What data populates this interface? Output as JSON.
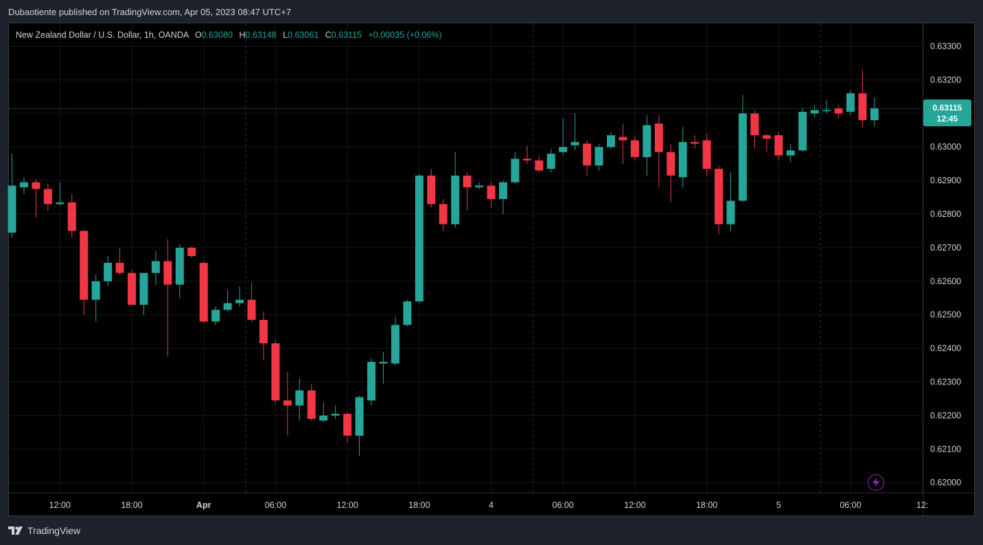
{
  "header": {
    "publisher_line": "Dubaotiente published on TradingView.com, Apr 05, 2023 08:47 UTC+7"
  },
  "legend": {
    "symbol": "New Zealand Dollar / U.S. Dollar, 1h, OANDA",
    "o_key": "O",
    "o_val": "0.63080",
    "h_key": "H",
    "h_val": "0.63148",
    "l_key": "L",
    "l_val": "0.63061",
    "c_key": "C",
    "c_val": "0.63115",
    "change": "+0.00035 (+0.06%)"
  },
  "price_tag": {
    "price": "0.63115",
    "countdown": "12:45"
  },
  "brand": {
    "name": "TradingView"
  },
  "colors": {
    "up": "#26a69a",
    "down": "#f23645",
    "background": "#000000",
    "grid": "#1c1f28",
    "text": "#d1d4dc"
  },
  "icons": {
    "replay": "lightning-bolt-icon",
    "logo": "tradingview-logo-icon"
  },
  "chart_data": {
    "type": "candlestick",
    "ylim": [
      0.6195,
      0.6335
    ],
    "y_ticks": [
      0.633,
      0.632,
      0.631,
      0.63,
      0.629,
      0.628,
      0.627,
      0.626,
      0.625,
      0.624,
      0.623,
      0.622,
      0.621,
      0.62
    ],
    "y_tick_labels": [
      "0.63300",
      "0.63200",
      "0.63100",
      "0.63000",
      "0.62900",
      "0.62800",
      "0.62700",
      "0.62600",
      "0.62500",
      "0.62400",
      "0.62300",
      "0.62200",
      "0.62100",
      "0.62000"
    ],
    "x_ticks": [
      {
        "label": "12:00",
        "bar": 4
      },
      {
        "label": "18:00",
        "bar": 10
      },
      {
        "label": "Apr",
        "bar": 16,
        "bold": true
      },
      {
        "label": "06:00",
        "bar": 22
      },
      {
        "label": "12:00",
        "bar": 28
      },
      {
        "label": "18:00",
        "bar": 34
      },
      {
        "label": "4",
        "bar": 40
      },
      {
        "label": "06:00",
        "bar": 46
      },
      {
        "label": "12:00",
        "bar": 52
      },
      {
        "label": "18:00",
        "bar": 58
      },
      {
        "label": "5",
        "bar": 64
      },
      {
        "label": "06:00",
        "bar": 70
      },
      {
        "label": "12:",
        "bar": 76
      }
    ],
    "session_breaks": [
      20,
      44,
      68
    ],
    "last_price": 0.63115,
    "candles": [
      {
        "o": 0.62745,
        "h": 0.6298,
        "l": 0.6273,
        "c": 0.62885
      },
      {
        "o": 0.6288,
        "h": 0.6291,
        "l": 0.6286,
        "c": 0.62895
      },
      {
        "o": 0.62895,
        "h": 0.62905,
        "l": 0.6279,
        "c": 0.62875
      },
      {
        "o": 0.62875,
        "h": 0.6289,
        "l": 0.6281,
        "c": 0.6283
      },
      {
        "o": 0.6283,
        "h": 0.62895,
        "l": 0.62825,
        "c": 0.62835
      },
      {
        "o": 0.62835,
        "h": 0.6286,
        "l": 0.6273,
        "c": 0.6275
      },
      {
        "o": 0.6275,
        "h": 0.62755,
        "l": 0.625,
        "c": 0.62545
      },
      {
        "o": 0.62545,
        "h": 0.6262,
        "l": 0.6248,
        "c": 0.626
      },
      {
        "o": 0.626,
        "h": 0.62675,
        "l": 0.62585,
        "c": 0.62655
      },
      {
        "o": 0.62655,
        "h": 0.627,
        "l": 0.6262,
        "c": 0.62625
      },
      {
        "o": 0.62625,
        "h": 0.62635,
        "l": 0.6253,
        "c": 0.6253
      },
      {
        "o": 0.6253,
        "h": 0.62625,
        "l": 0.625,
        "c": 0.62625
      },
      {
        "o": 0.62625,
        "h": 0.6269,
        "l": 0.6259,
        "c": 0.6266
      },
      {
        "o": 0.6266,
        "h": 0.62725,
        "l": 0.62375,
        "c": 0.6259
      },
      {
        "o": 0.6259,
        "h": 0.6271,
        "l": 0.6255,
        "c": 0.627
      },
      {
        "o": 0.627,
        "h": 0.62705,
        "l": 0.6267,
        "c": 0.62675
      },
      {
        "o": 0.62655,
        "h": 0.6266,
        "l": 0.62475,
        "c": 0.6248
      },
      {
        "o": 0.6248,
        "h": 0.62525,
        "l": 0.6247,
        "c": 0.62515
      },
      {
        "o": 0.62515,
        "h": 0.62575,
        "l": 0.6251,
        "c": 0.62535
      },
      {
        "o": 0.62535,
        "h": 0.62585,
        "l": 0.62525,
        "c": 0.62545
      },
      {
        "o": 0.62545,
        "h": 0.62595,
        "l": 0.6248,
        "c": 0.62485
      },
      {
        "o": 0.62485,
        "h": 0.6251,
        "l": 0.62365,
        "c": 0.62415
      },
      {
        "o": 0.62415,
        "h": 0.62425,
        "l": 0.62235,
        "c": 0.62245
      },
      {
        "o": 0.62245,
        "h": 0.6233,
        "l": 0.6214,
        "c": 0.6223
      },
      {
        "o": 0.6223,
        "h": 0.6231,
        "l": 0.62185,
        "c": 0.62275
      },
      {
        "o": 0.62275,
        "h": 0.62295,
        "l": 0.62185,
        "c": 0.6219
      },
      {
        "o": 0.62185,
        "h": 0.6224,
        "l": 0.6218,
        "c": 0.622
      },
      {
        "o": 0.622,
        "h": 0.6223,
        "l": 0.6219,
        "c": 0.62205
      },
      {
        "o": 0.62205,
        "h": 0.6221,
        "l": 0.6212,
        "c": 0.6214
      },
      {
        "o": 0.6214,
        "h": 0.6226,
        "l": 0.6208,
        "c": 0.62255
      },
      {
        "o": 0.62245,
        "h": 0.6237,
        "l": 0.6223,
        "c": 0.6236
      },
      {
        "o": 0.62355,
        "h": 0.6239,
        "l": 0.62295,
        "c": 0.6236
      },
      {
        "o": 0.62355,
        "h": 0.62495,
        "l": 0.6235,
        "c": 0.6247
      },
      {
        "o": 0.6247,
        "h": 0.62545,
        "l": 0.62465,
        "c": 0.6254
      },
      {
        "o": 0.6254,
        "h": 0.6292,
        "l": 0.62535,
        "c": 0.62915
      },
      {
        "o": 0.62915,
        "h": 0.62935,
        "l": 0.6282,
        "c": 0.6283
      },
      {
        "o": 0.6283,
        "h": 0.62845,
        "l": 0.6275,
        "c": 0.6277
      },
      {
        "o": 0.6277,
        "h": 0.62985,
        "l": 0.6276,
        "c": 0.62915
      },
      {
        "o": 0.62915,
        "h": 0.62925,
        "l": 0.6281,
        "c": 0.6288
      },
      {
        "o": 0.6288,
        "h": 0.62895,
        "l": 0.62875,
        "c": 0.62885
      },
      {
        "o": 0.62885,
        "h": 0.62895,
        "l": 0.6282,
        "c": 0.62845
      },
      {
        "o": 0.62845,
        "h": 0.629,
        "l": 0.628,
        "c": 0.62895
      },
      {
        "o": 0.62895,
        "h": 0.62985,
        "l": 0.6289,
        "c": 0.62965
      },
      {
        "o": 0.62965,
        "h": 0.63005,
        "l": 0.6295,
        "c": 0.6296
      },
      {
        "o": 0.6296,
        "h": 0.62975,
        "l": 0.62925,
        "c": 0.6293
      },
      {
        "o": 0.62935,
        "h": 0.62995,
        "l": 0.62925,
        "c": 0.6298
      },
      {
        "o": 0.62985,
        "h": 0.63085,
        "l": 0.62975,
        "c": 0.63
      },
      {
        "o": 0.63005,
        "h": 0.631,
        "l": 0.6299,
        "c": 0.63015
      },
      {
        "o": 0.6301,
        "h": 0.6302,
        "l": 0.62915,
        "c": 0.62945
      },
      {
        "o": 0.62945,
        "h": 0.6301,
        "l": 0.6293,
        "c": 0.63
      },
      {
        "o": 0.63,
        "h": 0.63045,
        "l": 0.62995,
        "c": 0.63035
      },
      {
        "o": 0.6303,
        "h": 0.6307,
        "l": 0.6295,
        "c": 0.6302
      },
      {
        "o": 0.6302,
        "h": 0.63035,
        "l": 0.6296,
        "c": 0.6297
      },
      {
        "o": 0.6297,
        "h": 0.63095,
        "l": 0.62915,
        "c": 0.63065
      },
      {
        "o": 0.6307,
        "h": 0.63095,
        "l": 0.6288,
        "c": 0.62985
      },
      {
        "o": 0.62985,
        "h": 0.6301,
        "l": 0.62835,
        "c": 0.62915
      },
      {
        "o": 0.6291,
        "h": 0.6306,
        "l": 0.6288,
        "c": 0.63015
      },
      {
        "o": 0.63015,
        "h": 0.63035,
        "l": 0.62995,
        "c": 0.6301
      },
      {
        "o": 0.6302,
        "h": 0.6304,
        "l": 0.62915,
        "c": 0.62935
      },
      {
        "o": 0.62935,
        "h": 0.62945,
        "l": 0.6274,
        "c": 0.6277
      },
      {
        "o": 0.6277,
        "h": 0.62925,
        "l": 0.6275,
        "c": 0.6284
      },
      {
        "o": 0.6284,
        "h": 0.63155,
        "l": 0.62835,
        "c": 0.631
      },
      {
        "o": 0.631,
        "h": 0.6311,
        "l": 0.62995,
        "c": 0.63035
      },
      {
        "o": 0.63035,
        "h": 0.6304,
        "l": 0.62985,
        "c": 0.63025
      },
      {
        "o": 0.63035,
        "h": 0.63045,
        "l": 0.6296,
        "c": 0.62975
      },
      {
        "o": 0.62975,
        "h": 0.6301,
        "l": 0.62955,
        "c": 0.6299
      },
      {
        "o": 0.6299,
        "h": 0.63115,
        "l": 0.62985,
        "c": 0.63105
      },
      {
        "o": 0.631,
        "h": 0.63125,
        "l": 0.6309,
        "c": 0.6311
      },
      {
        "o": 0.6311,
        "h": 0.6314,
        "l": 0.631,
        "c": 0.6311
      },
      {
        "o": 0.63115,
        "h": 0.63125,
        "l": 0.63085,
        "c": 0.631
      },
      {
        "o": 0.63105,
        "h": 0.6317,
        "l": 0.63095,
        "c": 0.6316
      },
      {
        "o": 0.6316,
        "h": 0.6323,
        "l": 0.6306,
        "c": 0.6308
      },
      {
        "o": 0.6308,
        "h": 0.63148,
        "l": 0.63061,
        "c": 0.63115
      }
    ]
  }
}
